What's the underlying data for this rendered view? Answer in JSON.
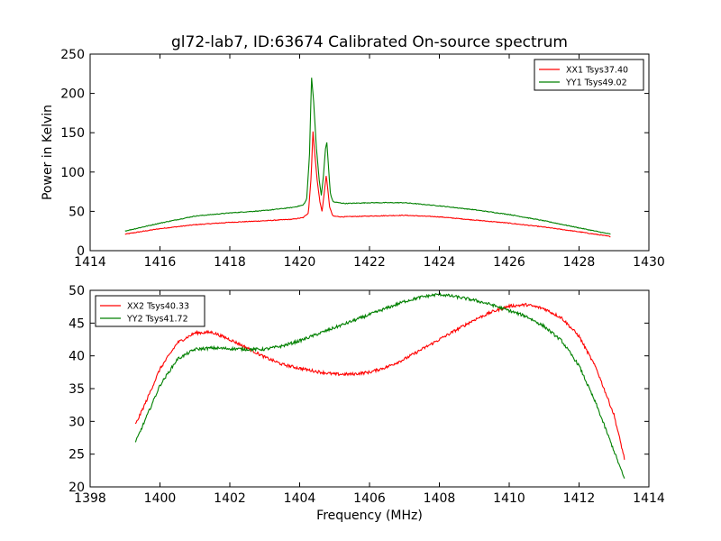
{
  "title": "gl72-lab7, ID:63674 Calibrated On-source spectrum",
  "colors": {
    "red": "#ff0000",
    "green": "#008000"
  },
  "chart_data": [
    {
      "type": "line",
      "ylabel": "Power in Kelvin",
      "xlabel": "",
      "xlim": [
        1414,
        1430
      ],
      "ylim": [
        0,
        250
      ],
      "xticks": [
        1414,
        1416,
        1418,
        1420,
        1422,
        1424,
        1426,
        1428,
        1430
      ],
      "yticks": [
        0,
        50,
        100,
        150,
        200,
        250
      ],
      "grid": false,
      "legend_position": "top-right",
      "series": [
        {
          "name": "XX1 Tsys37.40",
          "color": "#ff0000",
          "points": [
            [
              1415.0,
              21
            ],
            [
              1416.0,
              28
            ],
            [
              1417.0,
              33
            ],
            [
              1418.0,
              36
            ],
            [
              1419.0,
              38
            ],
            [
              1419.8,
              40
            ],
            [
              1420.1,
              42
            ],
            [
              1420.25,
              48
            ],
            [
              1420.33,
              95
            ],
            [
              1420.38,
              152
            ],
            [
              1420.42,
              130
            ],
            [
              1420.5,
              90
            ],
            [
              1420.58,
              62
            ],
            [
              1420.64,
              50
            ],
            [
              1420.7,
              72
            ],
            [
              1420.76,
              96
            ],
            [
              1420.8,
              80
            ],
            [
              1420.86,
              55
            ],
            [
              1420.95,
              44
            ],
            [
              1421.2,
              43
            ],
            [
              1422.0,
              44
            ],
            [
              1423.0,
              45
            ],
            [
              1424.0,
              43
            ],
            [
              1425.0,
              39
            ],
            [
              1426.0,
              35
            ],
            [
              1427.0,
              30
            ],
            [
              1428.0,
              24
            ],
            [
              1428.9,
              18
            ]
          ]
        },
        {
          "name": "YY1 Tsys49.02",
          "color": "#008000",
          "points": [
            [
              1415.0,
              25
            ],
            [
              1416.0,
              35
            ],
            [
              1417.0,
              44
            ],
            [
              1418.0,
              48
            ],
            [
              1419.0,
              51
            ],
            [
              1419.8,
              55
            ],
            [
              1420.1,
              58
            ],
            [
              1420.2,
              65
            ],
            [
              1420.28,
              120
            ],
            [
              1420.34,
              221
            ],
            [
              1420.4,
              190
            ],
            [
              1420.48,
              130
            ],
            [
              1420.56,
              90
            ],
            [
              1420.62,
              70
            ],
            [
              1420.68,
              95
            ],
            [
              1420.74,
              130
            ],
            [
              1420.78,
              138
            ],
            [
              1420.82,
              110
            ],
            [
              1420.88,
              72
            ],
            [
              1420.96,
              62
            ],
            [
              1421.3,
              60
            ],
            [
              1422.0,
              61
            ],
            [
              1423.0,
              61
            ],
            [
              1424.0,
              57
            ],
            [
              1425.0,
              52
            ],
            [
              1426.0,
              46
            ],
            [
              1427.0,
              38
            ],
            [
              1428.0,
              29
            ],
            [
              1428.9,
              21
            ]
          ]
        }
      ]
    },
    {
      "type": "line",
      "xlabel": "Frequency (MHz)",
      "ylabel": "",
      "xlim": [
        1398,
        1414
      ],
      "ylim": [
        20,
        50
      ],
      "xticks": [
        1398,
        1400,
        1402,
        1404,
        1406,
        1408,
        1410,
        1412,
        1414
      ],
      "yticks": [
        20,
        25,
        30,
        35,
        40,
        45,
        50
      ],
      "grid": false,
      "legend_position": "top-left",
      "series": [
        {
          "name": "XX2 Tsys40.33",
          "color": "#ff0000",
          "points": [
            [
              1399.3,
              29.5
            ],
            [
              1399.6,
              33.0
            ],
            [
              1400.0,
              38.0
            ],
            [
              1400.5,
              42.0
            ],
            [
              1401.0,
              43.5
            ],
            [
              1401.5,
              43.6
            ],
            [
              1402.0,
              42.5
            ],
            [
              1402.5,
              41.2
            ],
            [
              1403.0,
              39.8
            ],
            [
              1403.5,
              38.7
            ],
            [
              1404.0,
              38.1
            ],
            [
              1404.5,
              37.6
            ],
            [
              1405.0,
              37.2
            ],
            [
              1405.5,
              37.2
            ],
            [
              1406.0,
              37.5
            ],
            [
              1406.5,
              38.3
            ],
            [
              1407.0,
              39.5
            ],
            [
              1407.5,
              41.0
            ],
            [
              1408.0,
              42.5
            ],
            [
              1408.5,
              44.0
            ],
            [
              1409.0,
              45.5
            ],
            [
              1409.5,
              46.7
            ],
            [
              1410.0,
              47.6
            ],
            [
              1410.5,
              47.8
            ],
            [
              1411.0,
              47.2
            ],
            [
              1411.5,
              45.8
            ],
            [
              1412.0,
              43.0
            ],
            [
              1412.5,
              38.0
            ],
            [
              1413.0,
              31.0
            ],
            [
              1413.3,
              24.3
            ]
          ]
        },
        {
          "name": "YY2 Tsys41.72",
          "color": "#008000",
          "points": [
            [
              1399.3,
              26.8
            ],
            [
              1399.6,
              30.5
            ],
            [
              1400.0,
              35.5
            ],
            [
              1400.5,
              39.5
            ],
            [
              1401.0,
              41.0
            ],
            [
              1401.5,
              41.2
            ],
            [
              1402.0,
              41.1
            ],
            [
              1402.5,
              41.0
            ],
            [
              1403.0,
              41.0
            ],
            [
              1403.5,
              41.5
            ],
            [
              1404.0,
              42.3
            ],
            [
              1404.5,
              43.3
            ],
            [
              1405.0,
              44.3
            ],
            [
              1405.5,
              45.3
            ],
            [
              1406.0,
              46.3
            ],
            [
              1406.5,
              47.3
            ],
            [
              1407.0,
              48.3
            ],
            [
              1407.5,
              49.0
            ],
            [
              1408.0,
              49.4
            ],
            [
              1408.5,
              49.0
            ],
            [
              1409.0,
              48.5
            ],
            [
              1409.5,
              47.8
            ],
            [
              1410.0,
              46.9
            ],
            [
              1410.5,
              46.0
            ],
            [
              1411.0,
              44.5
            ],
            [
              1411.5,
              42.3
            ],
            [
              1412.0,
              38.5
            ],
            [
              1412.5,
              32.5
            ],
            [
              1413.0,
              25.5
            ],
            [
              1413.3,
              21.2
            ]
          ]
        }
      ]
    }
  ]
}
